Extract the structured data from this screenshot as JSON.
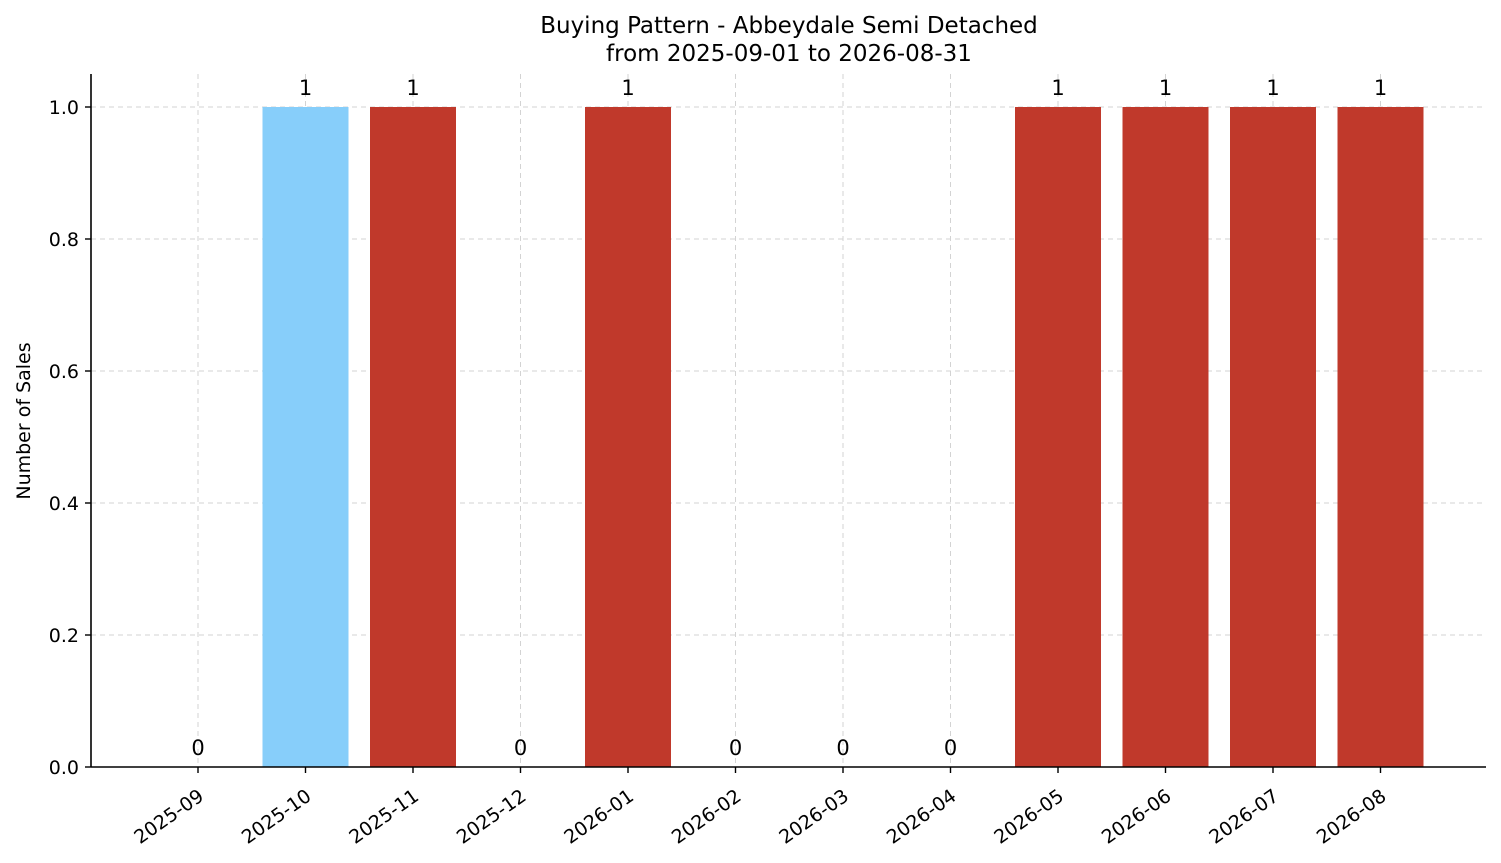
{
  "chart_data": {
    "type": "bar",
    "title_line1": "Buying Pattern - Abbeydale Semi Detached",
    "title_line2": "from 2025-09-01 to 2026-08-31",
    "xlabel": "",
    "ylabel": "Number of Sales",
    "categories": [
      "2025-09",
      "2025-10",
      "2025-11",
      "2025-12",
      "2026-01",
      "2026-02",
      "2026-03",
      "2026-04",
      "2026-05",
      "2026-06",
      "2026-07",
      "2026-08"
    ],
    "values": [
      0,
      1,
      1,
      0,
      1,
      0,
      0,
      0,
      1,
      1,
      1,
      1
    ],
    "bar_colors": [
      "#c0392b",
      "#87cefa",
      "#c0392b",
      "#c0392b",
      "#c0392b",
      "#c0392b",
      "#c0392b",
      "#c0392b",
      "#c0392b",
      "#c0392b",
      "#c0392b",
      "#c0392b"
    ],
    "ylim": [
      0,
      1.05
    ],
    "yticks": [
      "0.0",
      "0.2",
      "0.4",
      "0.6",
      "0.8",
      "1.0"
    ],
    "grid": true,
    "legend": "none"
  }
}
